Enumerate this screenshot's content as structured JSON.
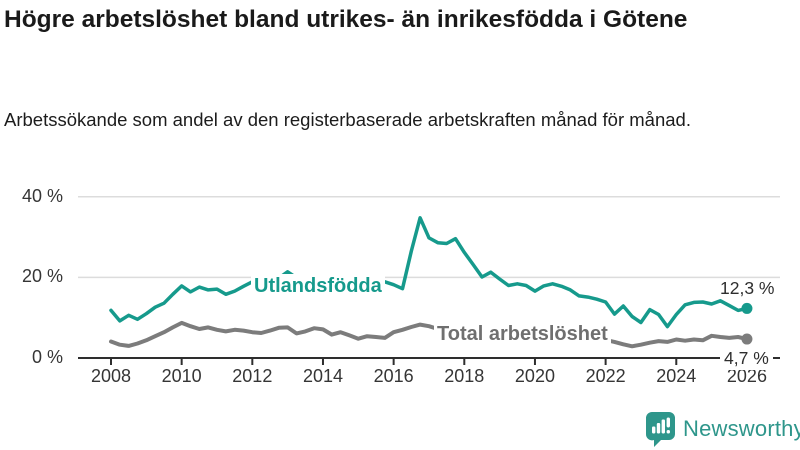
{
  "header": {
    "title": "Högre arbetslöshet bland utrikes- än inrikesfödda i Götene",
    "subtitle": "Arbetssökande som andel av den registerbaserade arbetskraften månad för månad."
  },
  "chart_data": {
    "type": "line",
    "title": "Högre arbetslöshet bland utrikes- än inrikesfödda i Götene",
    "subtitle": "Arbetssökande som andel av den registerbaserade arbetskraften månad för månad.",
    "xlabel": "",
    "ylabel": "",
    "x_start": 2008,
    "x_end": 2026,
    "x_step_years": 0.25,
    "ylim": [
      0,
      44
    ],
    "grid": "horizontal",
    "legend_position": "inline-labels",
    "y_ticks": [
      {
        "label": "0 %",
        "value": 0
      },
      {
        "label": "20 %",
        "value": 20
      },
      {
        "label": "40 %",
        "value": 40
      }
    ],
    "x_ticks": [
      {
        "label": "2008",
        "value": 2008
      },
      {
        "label": "2010",
        "value": 2010
      },
      {
        "label": "2012",
        "value": 2012
      },
      {
        "label": "2014",
        "value": 2014
      },
      {
        "label": "2016",
        "value": 2016
      },
      {
        "label": "2018",
        "value": 2018
      },
      {
        "label": "2020",
        "value": 2020
      },
      {
        "label": "2022",
        "value": 2022
      },
      {
        "label": "2024",
        "value": 2024
      },
      {
        "label": "2026",
        "value": 2026
      }
    ],
    "series": [
      {
        "name": "Utlandsfödda",
        "color": "#169a8c",
        "end_label": "12,3 %",
        "end_value": 12.3,
        "values": [
          11.8,
          9.2,
          10.6,
          9.6,
          11.0,
          12.6,
          13.6,
          15.8,
          17.9,
          16.4,
          17.6,
          16.9,
          17.1,
          15.8,
          16.6,
          17.8,
          18.9,
          18.2,
          18.7,
          19.8,
          21.4,
          19.9,
          18.7,
          18.1,
          18.4,
          17.6,
          18.1,
          18.7,
          18.1,
          17.5,
          18.4,
          18.9,
          18.2,
          17.2,
          26.5,
          34.8,
          29.8,
          28.6,
          28.4,
          29.6,
          26.2,
          23.2,
          20.1,
          21.3,
          19.6,
          18.0,
          18.4,
          18.0,
          16.6,
          17.9,
          18.4,
          17.8,
          16.9,
          15.4,
          15.1,
          14.6,
          13.9,
          10.9,
          12.9,
          10.3,
          8.8,
          12.0,
          10.8,
          7.8,
          10.8,
          13.2,
          13.8,
          13.9,
          13.4,
          14.2,
          13.0,
          11.8,
          12.3
        ]
      },
      {
        "name": "Total arbetslöshet",
        "color": "#7c7c7c",
        "end_label": "4,7 %",
        "end_value": 4.7,
        "values": [
          4.1,
          3.3,
          3.0,
          3.6,
          4.4,
          5.4,
          6.4,
          7.6,
          8.7,
          7.9,
          7.2,
          7.6,
          7.0,
          6.6,
          7.0,
          6.8,
          6.4,
          6.2,
          6.8,
          7.5,
          7.6,
          6.1,
          6.6,
          7.4,
          7.1,
          5.8,
          6.4,
          5.6,
          4.8,
          5.4,
          5.2,
          5.0,
          6.4,
          7.0,
          7.7,
          8.3,
          7.9,
          7.2,
          7.5,
          7.0,
          6.6,
          6.0,
          6.2,
          5.9,
          6.3,
          5.7,
          5.9,
          6.1,
          6.8,
          7.3,
          7.0,
          6.6,
          6.2,
          5.6,
          5.2,
          4.9,
          4.5,
          4.0,
          3.4,
          2.9,
          3.3,
          3.8,
          4.2,
          4.0,
          4.6,
          4.3,
          4.6,
          4.4,
          5.5,
          5.2,
          5.0,
          5.2,
          4.7
        ]
      }
    ]
  },
  "footer": {
    "brand": "Newsworthy",
    "logo_icon": "bar-chart-speech-bubble-icon"
  },
  "colors": {
    "accent_teal": "#169a8c",
    "series_gray": "#7c7c7c",
    "gridline": "#dcdcdc",
    "axis": "#2e2e2e",
    "text": "#1a1a1a",
    "logo_teal": "#2e968b"
  }
}
